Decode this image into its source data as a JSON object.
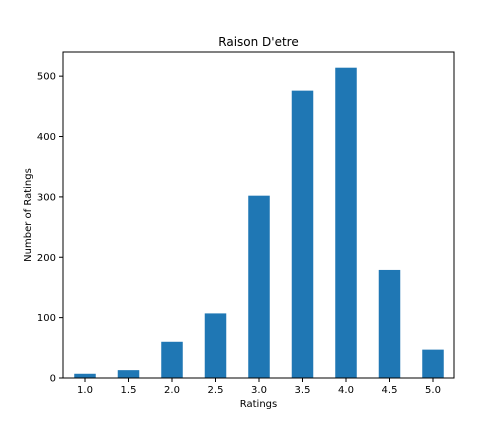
{
  "chart_data": {
    "type": "bar",
    "title": "Raison D'etre",
    "xlabel": "Ratings",
    "ylabel": "Number of Ratings",
    "categories": [
      "1.0",
      "1.5",
      "2.0",
      "2.5",
      "3.0",
      "3.5",
      "4.0",
      "4.5",
      "5.0"
    ],
    "values": [
      7,
      13,
      60,
      107,
      302,
      476,
      514,
      179,
      47
    ],
    "ylim": [
      0,
      540
    ],
    "yticks": [
      0,
      100,
      200,
      300,
      400,
      500
    ],
    "grid": false,
    "legend": "none",
    "colors": {
      "bar": "#1f77b4",
      "axis": "#000000",
      "background": "#ffffff"
    }
  }
}
